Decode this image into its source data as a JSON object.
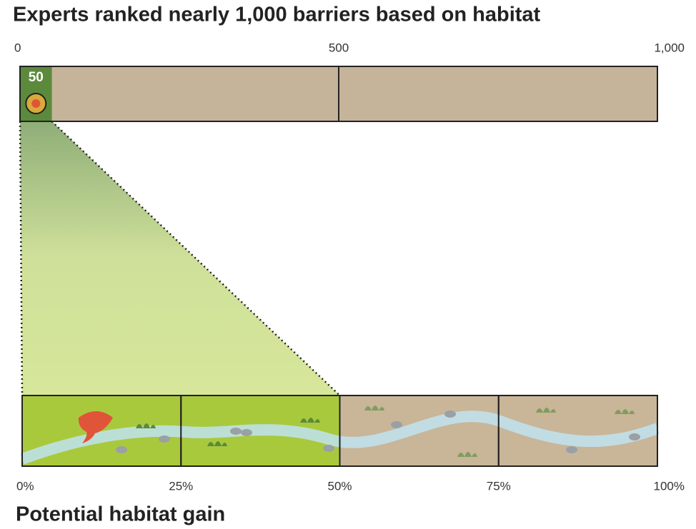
{
  "chart_data": [
    {
      "type": "bar",
      "title": "Experts ranked nearly 1,000 barriers based on habitat",
      "values": [
        50
      ],
      "value_labels": [
        "50"
      ],
      "xlim": [
        0,
        1000
      ],
      "xticks": [
        0,
        500,
        {
          "value": 1000,
          "label": "1,000"
        }
      ],
      "color": "#5b8a3c",
      "background": "#c5b49a"
    },
    {
      "type": "bar",
      "title": "Potential habitat gain",
      "values": [
        50
      ],
      "xlim": [
        0,
        100
      ],
      "xticks": [
        {
          "value": 0,
          "label": "0%"
        },
        {
          "value": 25,
          "label": "25%"
        },
        {
          "value": 50,
          "label": "50%"
        },
        {
          "value": 75,
          "label": "75%"
        },
        {
          "value": 100,
          "label": "100%"
        }
      ],
      "color": "#a9c93c",
      "background": "#c9b598"
    }
  ]
}
